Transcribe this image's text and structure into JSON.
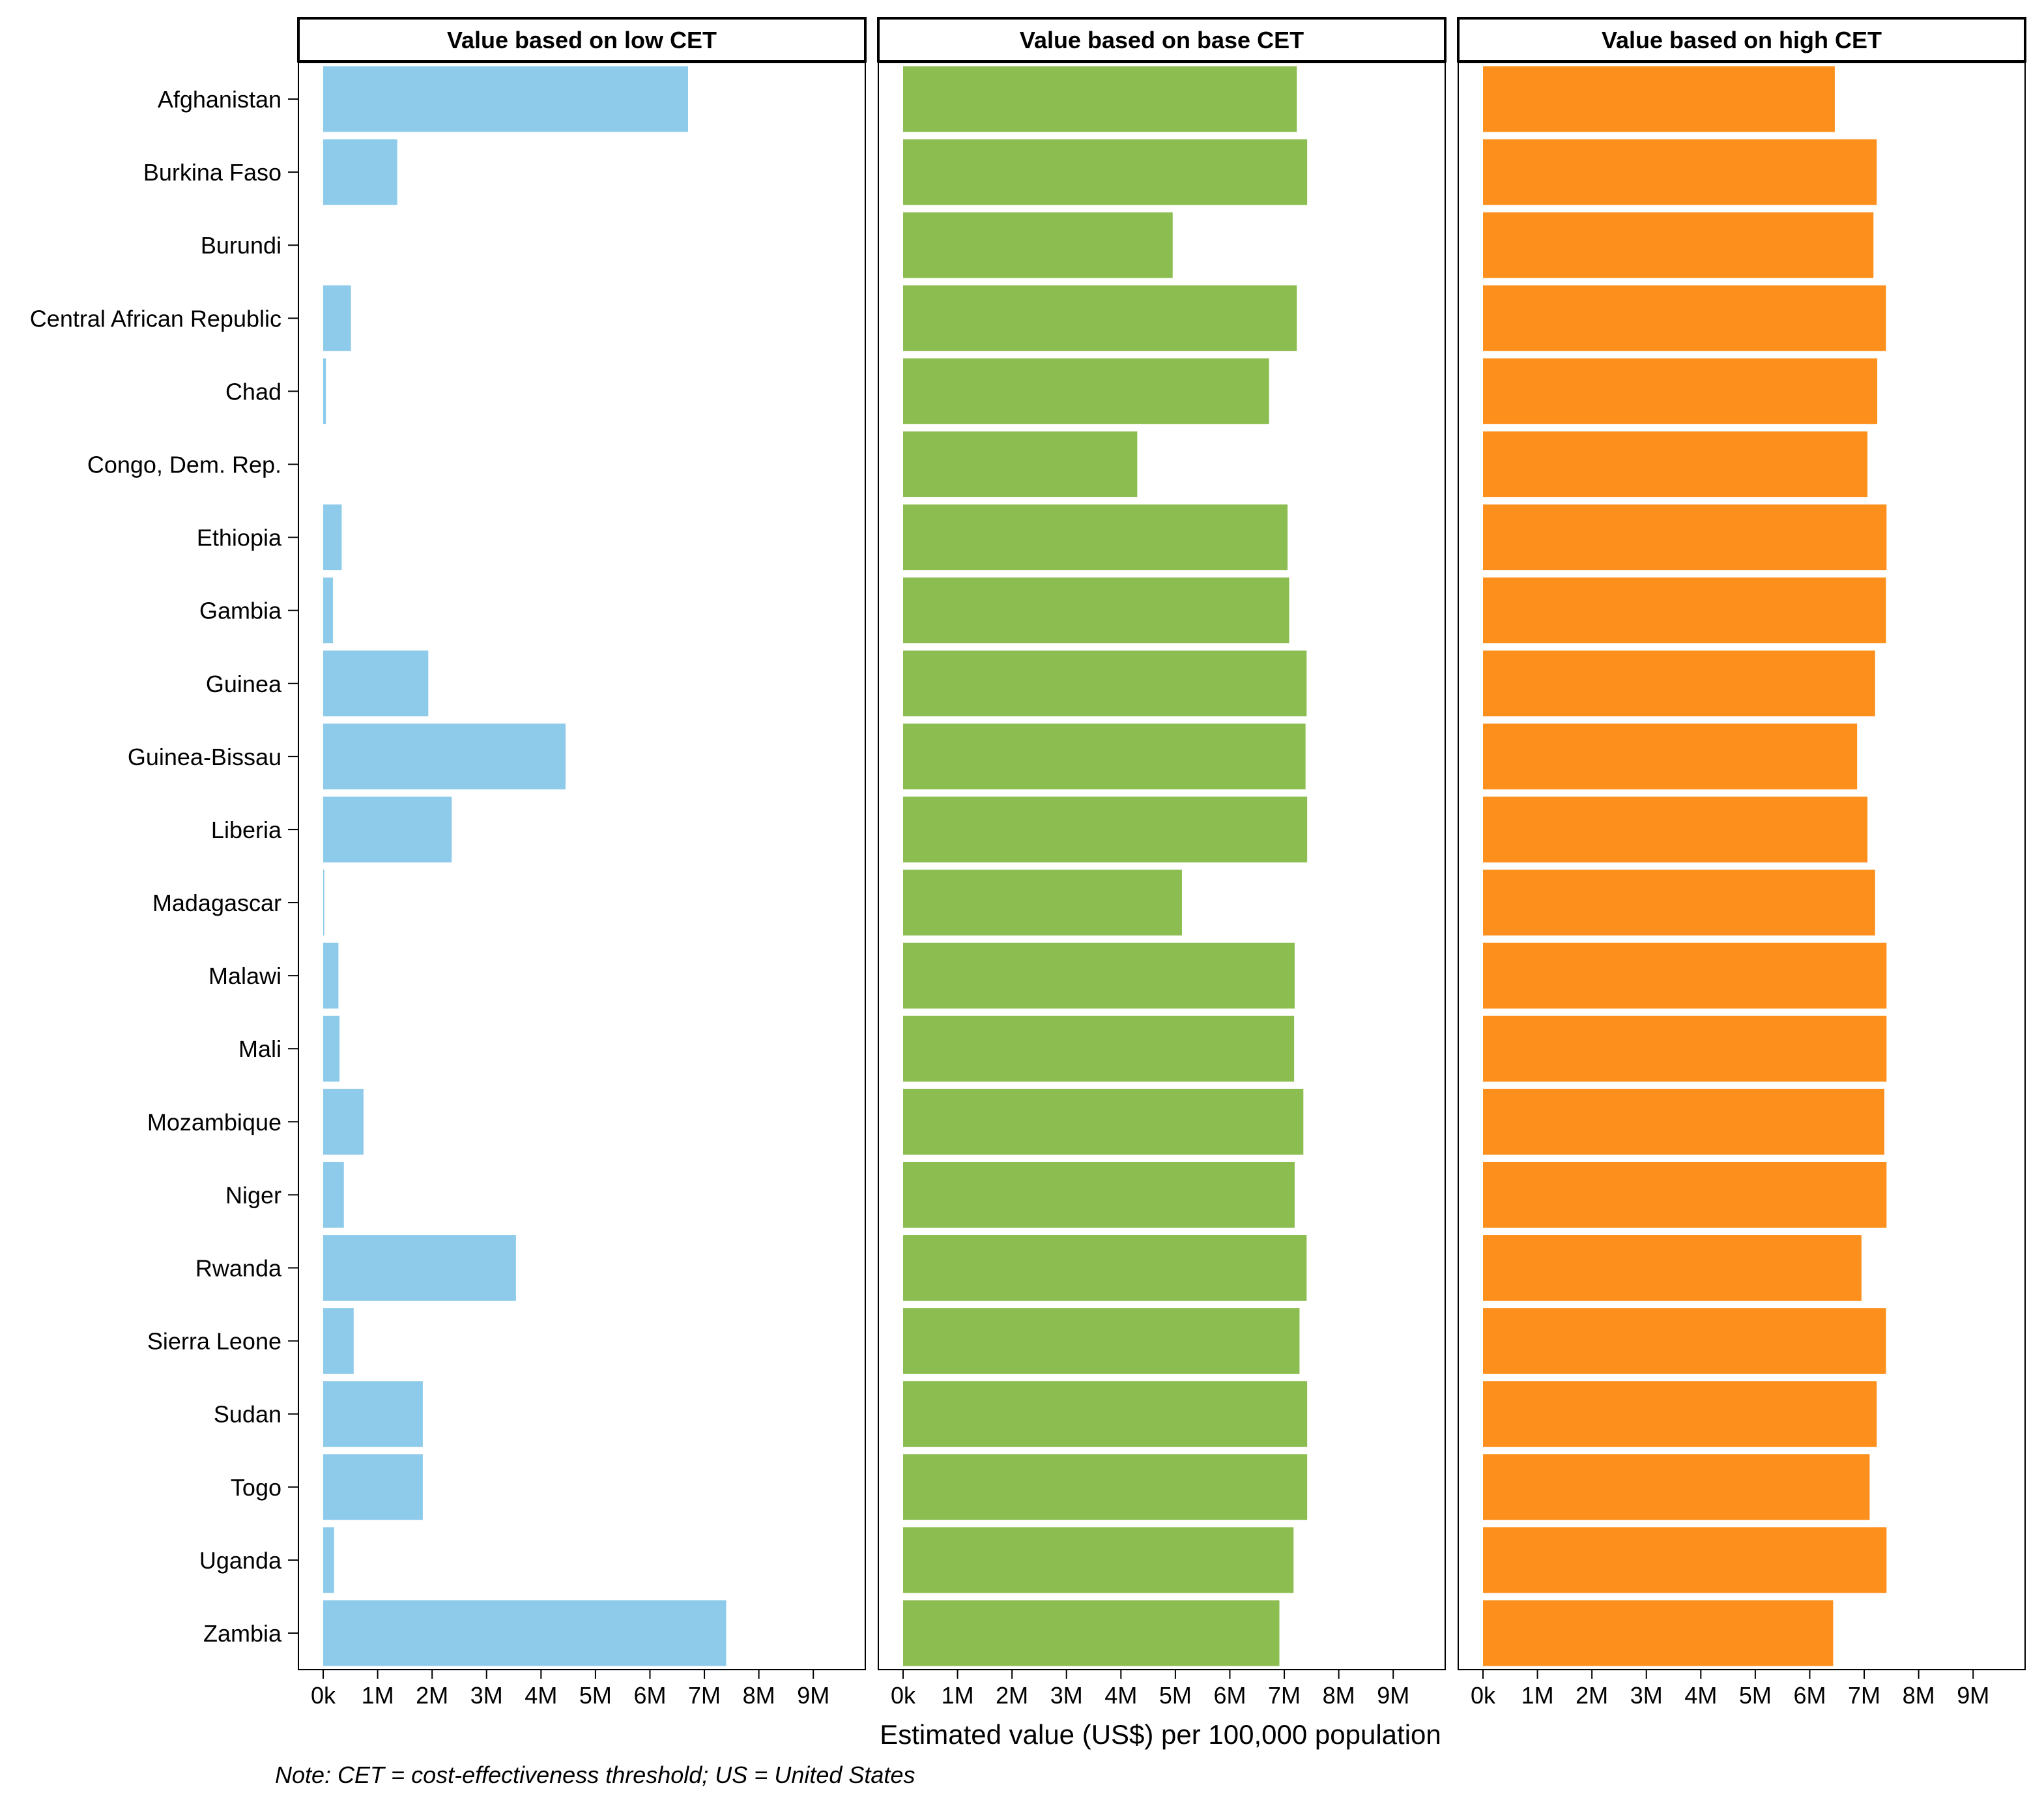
{
  "chart_data": {
    "type": "bar",
    "orientation": "horizontal",
    "xlabel": "Estimated value (US$) per 100,000 population",
    "note": "Note: CET = cost-effectiveness threshold; US = United States",
    "xlim": [
      0,
      9500000
    ],
    "x_ticks": [
      0,
      1000000,
      2000000,
      3000000,
      4000000,
      5000000,
      6000000,
      7000000,
      8000000,
      9000000
    ],
    "x_tick_labels": [
      "0k",
      "1M",
      "2M",
      "3M",
      "4M",
      "5M",
      "6M",
      "7M",
      "8M",
      "9M"
    ],
    "grid": false,
    "legend": "none",
    "categories": [
      "Afghanistan",
      "Burkina Faso",
      "Burundi",
      "Central African Republic",
      "Chad",
      "Congo, Dem. Rep.",
      "Ethiopia",
      "Gambia",
      "Guinea",
      "Guinea-Bissau",
      "Liberia",
      "Madagascar",
      "Malawi",
      "Mali",
      "Mozambique",
      "Niger",
      "Rwanda",
      "Sierra Leone",
      "Sudan",
      "Togo",
      "Uganda",
      "Zambia"
    ],
    "series": [
      {
        "name": "Value based on low CET",
        "color": "#8ecbeb",
        "values": [
          6700000,
          1360000,
          0,
          510000,
          50000,
          0,
          340000,
          180000,
          1930000,
          4450000,
          2360000,
          20000,
          280000,
          300000,
          740000,
          380000,
          3540000,
          560000,
          1830000,
          1830000,
          200000,
          7400000
        ]
      },
      {
        "name": "Value based on base CET",
        "color": "#8cbd51",
        "values": [
          7230000,
          7420000,
          4950000,
          7230000,
          6720000,
          4300000,
          7060000,
          7090000,
          7410000,
          7390000,
          7420000,
          5120000,
          7190000,
          7180000,
          7350000,
          7190000,
          7410000,
          7280000,
          7420000,
          7420000,
          7170000,
          6910000
        ]
      },
      {
        "name": "Value based on high CET",
        "color": "#fd8f1c",
        "values": [
          6460000,
          7230000,
          7170000,
          7400000,
          7240000,
          7060000,
          7410000,
          7400000,
          7200000,
          6870000,
          7060000,
          7200000,
          7410000,
          7410000,
          7370000,
          7410000,
          6950000,
          7400000,
          7230000,
          7100000,
          7410000,
          6430000
        ]
      }
    ]
  }
}
